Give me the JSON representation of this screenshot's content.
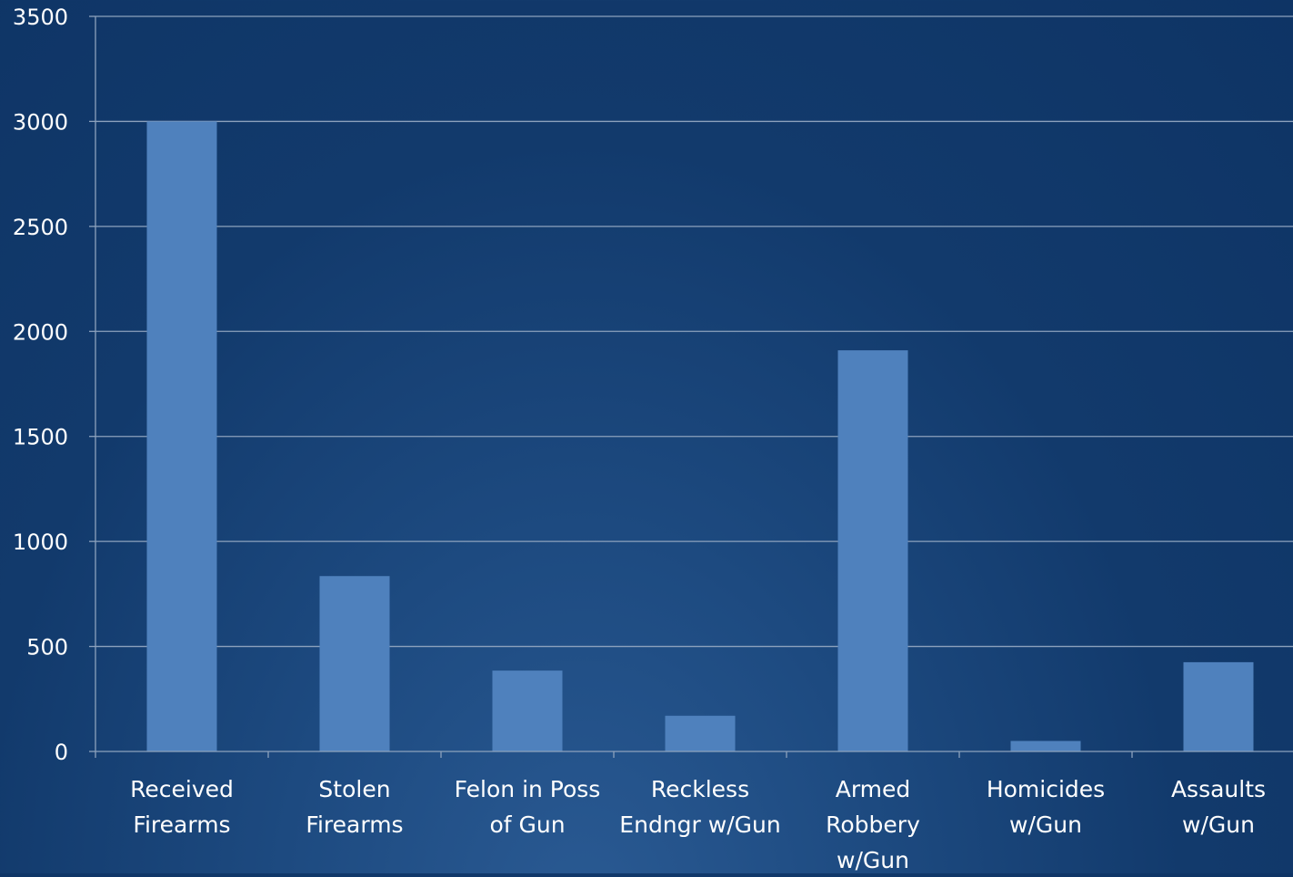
{
  "chart_data": {
    "type": "bar",
    "categories": [
      "Received Firearms",
      "Stolen Firearms",
      "Felon in Poss of Gun",
      "Reckless Endngr w/Gun",
      "Armed Robbery w/Gun",
      "Homicides w/Gun",
      "Assaults w/Gun"
    ],
    "category_lines": [
      [
        "Received",
        "Firearms"
      ],
      [
        "Stolen",
        "Firearms"
      ],
      [
        "Felon in Poss",
        "of Gun"
      ],
      [
        "Reckless",
        "Endngr w/Gun"
      ],
      [
        "Armed",
        "Robbery",
        "w/Gun"
      ],
      [
        "Homicides",
        "w/Gun"
      ],
      [
        "Assaults",
        "w/Gun"
      ]
    ],
    "values": [
      3000,
      835,
      385,
      170,
      1910,
      50,
      425
    ],
    "ylim": [
      0,
      3500
    ],
    "yticks": [
      "0",
      "500",
      "1000",
      "1500",
      "2000",
      "2500",
      "3000",
      "3500"
    ],
    "title": "",
    "xlabel": "",
    "ylabel": "",
    "grid": true,
    "legend": "none",
    "colors": {
      "bar": "#4f81bd",
      "grid": "#8da2bd",
      "axis": "#8da2bd",
      "text": "#ffffff"
    }
  }
}
